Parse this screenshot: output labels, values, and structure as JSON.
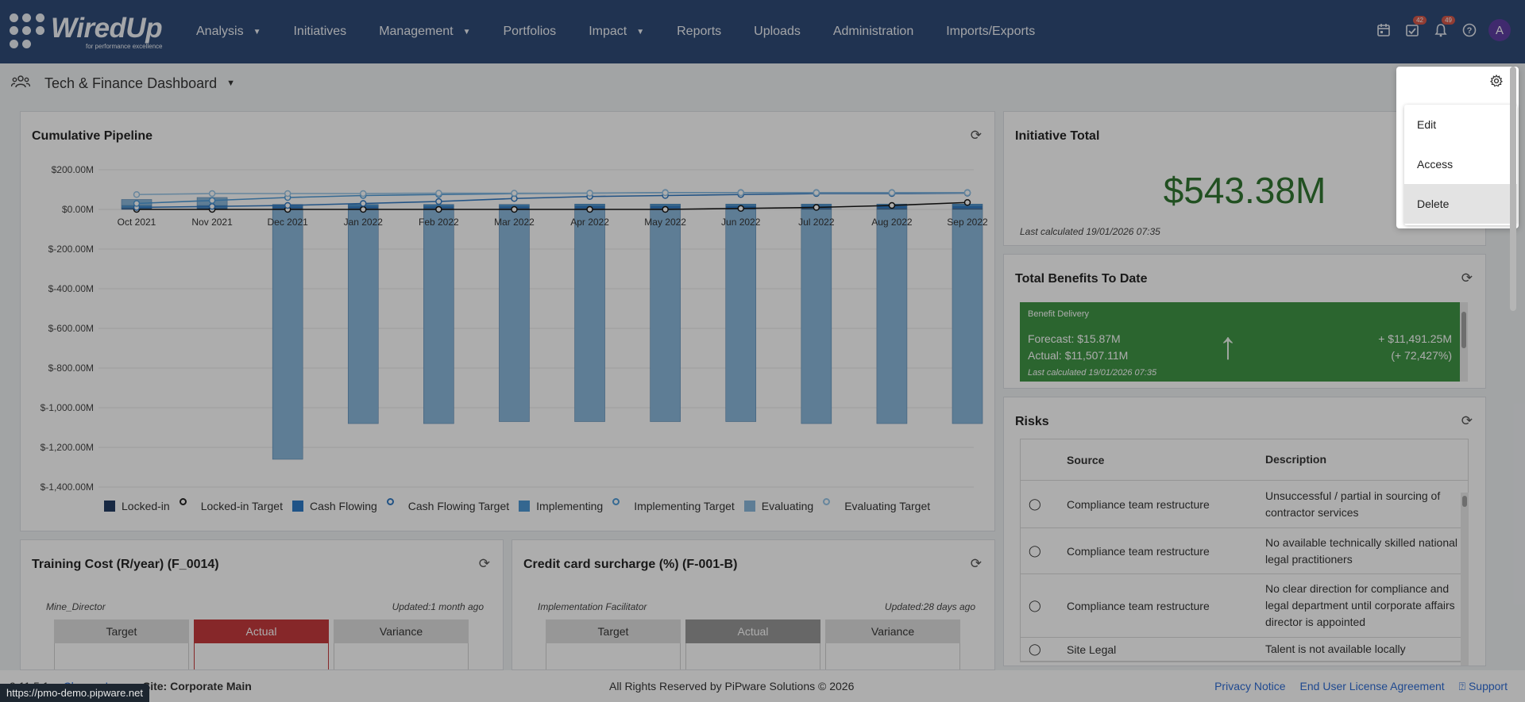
{
  "nav": {
    "logo_word": "WiredUp",
    "logo_tagline": "for performance excellence",
    "items": [
      {
        "label": "Analysis",
        "dropdown": true
      },
      {
        "label": "Initiatives",
        "dropdown": false
      },
      {
        "label": "Management",
        "dropdown": true
      },
      {
        "label": "Portfolios",
        "dropdown": false
      },
      {
        "label": "Impact",
        "dropdown": true
      },
      {
        "label": "Reports",
        "dropdown": false
      },
      {
        "label": "Uploads",
        "dropdown": false
      },
      {
        "label": "Administration",
        "dropdown": false
      },
      {
        "label": "Imports/Exports",
        "dropdown": false
      }
    ],
    "tasks_badge": "42",
    "notifications_badge": "49",
    "avatar_letter": "A"
  },
  "page": {
    "title": "Tech & Finance Dashboard"
  },
  "settings_menu": {
    "items": [
      "Edit",
      "Access",
      "Delete"
    ],
    "active": "Delete"
  },
  "cumulative_pipeline": {
    "title": "Cumulative Pipeline"
  },
  "chart_data": {
    "type": "bar",
    "title": "Cumulative Pipeline",
    "categories": [
      "Oct 2021",
      "Nov 2021",
      "Dec 2021",
      "Jan 2022",
      "Feb 2022",
      "Mar 2022",
      "Apr 2022",
      "May 2022",
      "Jun 2022",
      "Jul 2022",
      "Aug 2022",
      "Sep 2022"
    ],
    "y_ticks": [
      "$200.00M",
      "$0.00M",
      "$-200.00M",
      "$-400.00M",
      "$-600.00M",
      "$-800.00M",
      "$-1,000.00M",
      "$-1,200.00M",
      "$-1,400.00M"
    ],
    "ylim": [
      -1400,
      200
    ],
    "grid": true,
    "legend_position": "bottom",
    "series": [
      {
        "name": "Locked-in",
        "kind": "bar",
        "color": "#0f2b55",
        "values": [
          5,
          5,
          5,
          5,
          5,
          5,
          5,
          5,
          5,
          5,
          5,
          5
        ]
      },
      {
        "name": "Locked-in Target",
        "kind": "line",
        "color": "#000000",
        "values": [
          0,
          0,
          0,
          0,
          0,
          0,
          0,
          0,
          5,
          10,
          20,
          35
        ]
      },
      {
        "name": "Cash Flowing",
        "kind": "bar",
        "color": "#1a6fc2",
        "values": [
          5,
          5,
          10,
          10,
          10,
          10,
          12,
          12,
          12,
          12,
          12,
          12
        ]
      },
      {
        "name": "Cash Flowing Target",
        "kind": "line",
        "color": "#1f6fbf",
        "values": [
          10,
          15,
          20,
          30,
          40,
          55,
          65,
          70,
          75,
          80,
          80,
          82
        ]
      },
      {
        "name": "Implementing",
        "kind": "bar",
        "color": "#3d8fd1",
        "values": [
          10,
          10,
          10,
          10,
          10,
          10,
          10,
          10,
          10,
          10,
          10,
          10
        ]
      },
      {
        "name": "Implementing Target",
        "kind": "line",
        "color": "#3f93d6",
        "values": [
          30,
          45,
          60,
          70,
          75,
          80,
          82,
          85,
          85,
          85,
          85,
          85
        ]
      },
      {
        "name": "Evaluating",
        "kind": "bar",
        "color": "#80b2d9",
        "values": [
          30,
          40,
          -1260,
          -1080,
          -1080,
          -1070,
          -1070,
          -1070,
          -1070,
          -1080,
          -1080,
          -1080
        ]
      },
      {
        "name": "Evaluating Target",
        "kind": "line",
        "color": "#8ec0e6",
        "values": [
          75,
          80,
          80,
          80,
          82,
          82,
          82,
          84,
          84,
          84,
          84,
          84
        ]
      }
    ]
  },
  "initiative_total": {
    "title": "Initiative Total",
    "value": "$543.38M",
    "last_calculated": "Last calculated 19/01/2026 07:35"
  },
  "total_benefits": {
    "title": "Total Benefits To Date",
    "box_title": "Benefit Delivery",
    "forecast": "Forecast: $15.87M",
    "actual": "Actual: $11,507.11M",
    "change": "+ $11,491.25M",
    "change_pct": "(+ 72,427%)",
    "last_calculated": "Last calculated 19/01/2026 07:35",
    "color": "#2e8b35"
  },
  "risks": {
    "title": "Risks",
    "columns": [
      "Source",
      "Description"
    ],
    "rows": [
      {
        "source": "Compliance team restructure",
        "description": "Unsuccessful / partial in sourcing of contractor services"
      },
      {
        "source": "Compliance team restructure",
        "description": "No available technically skilled national legal practitioners"
      },
      {
        "source": "Compliance team restructure",
        "description": "No clear direction for compliance and legal department until corporate affairs director is appointed"
      },
      {
        "source": "Site Legal",
        "description": "Talent is not available locally"
      }
    ]
  },
  "training_cost": {
    "title": "Training Cost (R/year) (F_0014)",
    "owner": "Mine_Director",
    "updated": "Updated:1 month ago",
    "columns": [
      "Target",
      "Actual",
      "Variance"
    ],
    "actual_color": "#c0282b"
  },
  "credit_card": {
    "title": "Credit card surcharge (%) (F-001-B)",
    "owner": "Implementation Facilitator",
    "updated": "Updated:28 days ago",
    "columns": [
      "Target",
      "Actual",
      "Variance"
    ],
    "actual_color": "#8e8e8e"
  },
  "footer": {
    "version": "9.11.5.1",
    "change_log": "Change Log",
    "site": "Site: Corporate Main",
    "copyright": "All Rights Reserved by PiPware Solutions © 2026",
    "privacy": "Privacy Notice",
    "eula": "End User License Agreement",
    "support": "Support"
  },
  "status_url": "https://pmo-demo.pipware.net"
}
